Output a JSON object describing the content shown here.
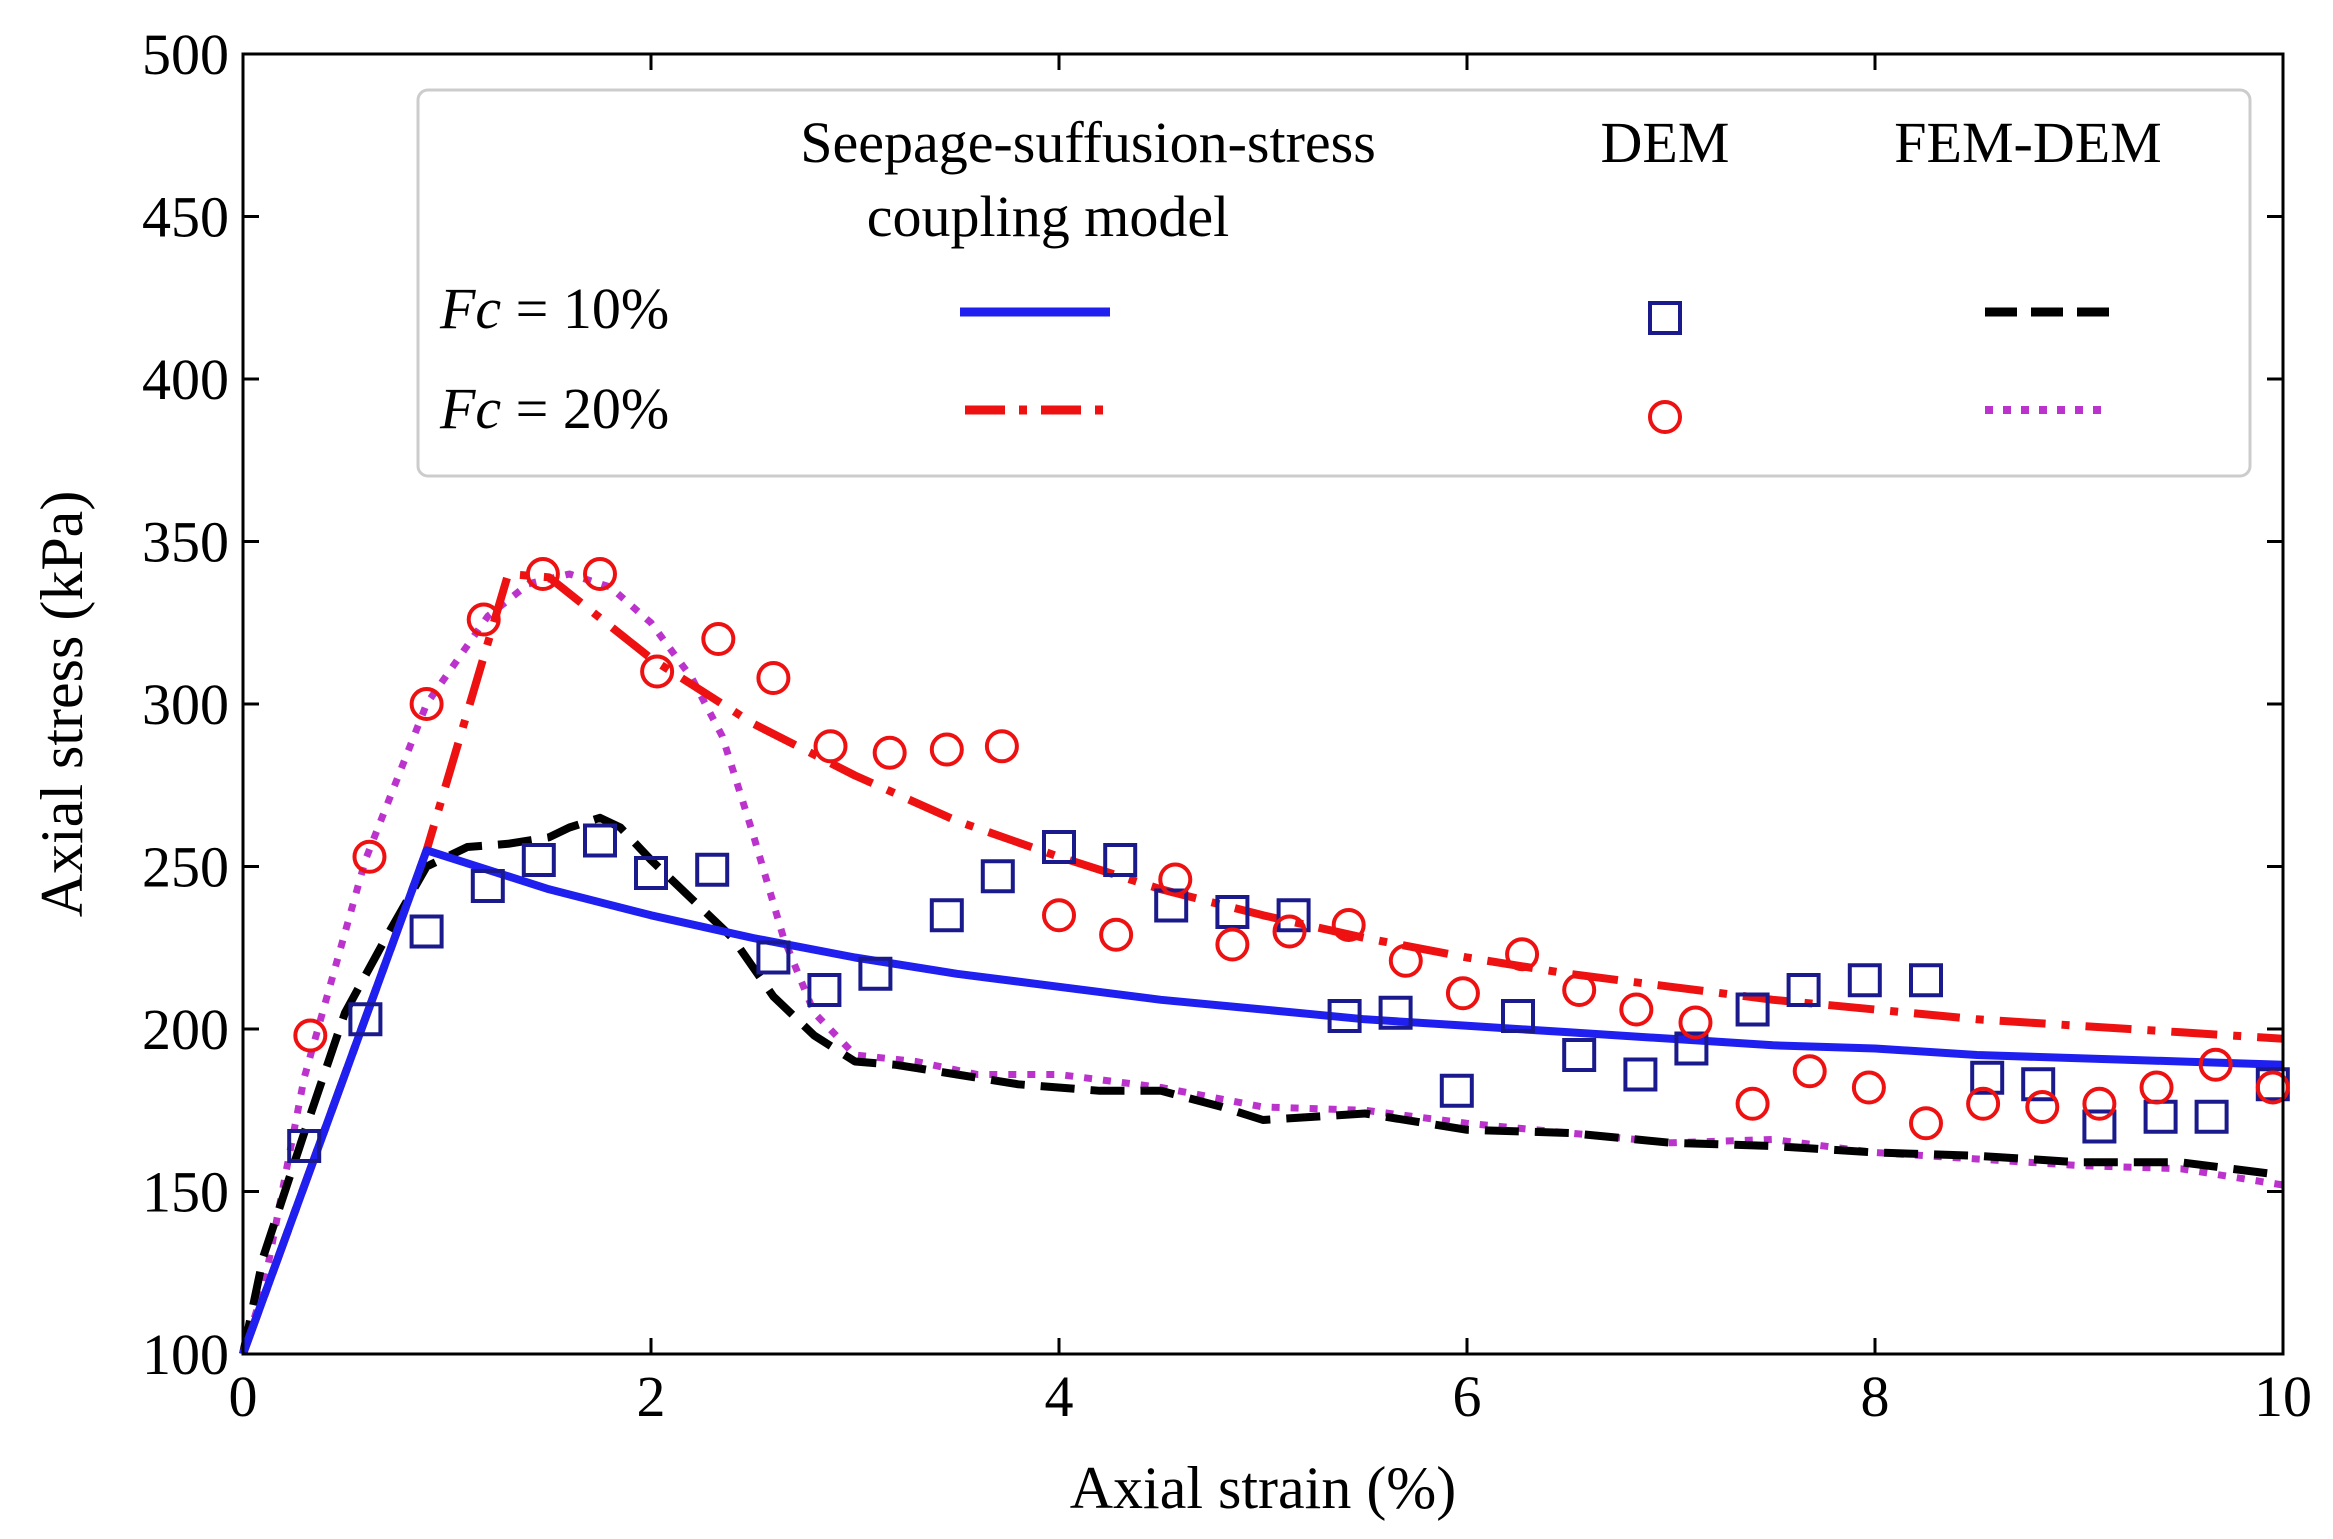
{
  "chart_data": {
    "type": "line",
    "xlabel": "Axial strain (%)",
    "ylabel": "Axial stress (kPa)",
    "xlim": [
      0,
      10
    ],
    "ylim": [
      100,
      500
    ],
    "xticks": [
      0,
      2,
      4,
      6,
      8,
      10
    ],
    "yticks": [
      100,
      150,
      200,
      250,
      300,
      350,
      400,
      450,
      500
    ],
    "legend": {
      "placement": "top-right",
      "col_headers": [
        "Seepage-suffusion-stress coupling model",
        "DEM",
        "FEM-DEM"
      ],
      "col_header_lines": [
        "Seepage-suffusion-stress",
        "coupling model"
      ],
      "rows": [
        {
          "var": "Fc",
          "rest": " = 10%"
        },
        {
          "var": "Fc",
          "rest": " = 20%"
        }
      ]
    },
    "colors": {
      "model_10": "#1f1ff0",
      "model_20": "#ee1111",
      "dem_10": "#1a1a8c",
      "dem_20": "#ee1111",
      "femdem_10": "#000000",
      "femdem_20": "#bb33cc"
    },
    "series": [
      {
        "name": "Seepage-suffusion-stress coupling model, Fc = 10%",
        "style": "solid",
        "x": [
          0,
          0.9,
          1.5,
          2,
          2.5,
          3,
          3.5,
          4,
          4.5,
          5,
          5.5,
          6,
          6.5,
          7,
          7.5,
          8,
          8.5,
          9,
          9.5,
          10
        ],
        "y": [
          100,
          255,
          243,
          235,
          228,
          222,
          217,
          213,
          209,
          206,
          203,
          201,
          199,
          197,
          195,
          194,
          192,
          191,
          190,
          189
        ]
      },
      {
        "name": "Seepage-suffusion-stress coupling model, Fc = 20%",
        "style": "dashdot",
        "x": [
          0,
          0.9,
          1.3,
          1.5,
          2,
          2.5,
          3,
          3.5,
          4,
          4.5,
          5,
          5.5,
          6,
          6.5,
          7,
          7.5,
          8,
          8.5,
          9,
          9.5,
          10
        ],
        "y": [
          100,
          255,
          340,
          339,
          314,
          294,
          278,
          264,
          253,
          243,
          235,
          228,
          222,
          217,
          213,
          209,
          206,
          203,
          201,
          199,
          197
        ]
      },
      {
        "name": "DEM, Fc = 10%",
        "style": "square",
        "x": [
          0.3,
          0.6,
          0.9,
          1.2,
          1.45,
          1.75,
          2.0,
          2.3,
          2.6,
          2.85,
          3.1,
          3.45,
          3.7,
          4.0,
          4.3,
          4.55,
          4.85,
          5.15,
          5.4,
          5.65,
          5.95,
          6.25,
          6.55,
          6.85,
          7.1,
          7.4,
          7.65,
          7.95,
          8.25,
          8.55,
          8.8,
          9.1,
          9.4,
          9.65,
          9.95
        ],
        "y": [
          164,
          203,
          230,
          244,
          252,
          258,
          248,
          249,
          222,
          212,
          217,
          235,
          247,
          256,
          252,
          238,
          236,
          235,
          204,
          205,
          181,
          204,
          192,
          186,
          194,
          206,
          212,
          215,
          215,
          185,
          183,
          170,
          173,
          173,
          183
        ]
      },
      {
        "name": "DEM, Fc = 20%",
        "style": "circle",
        "x": [
          0.33,
          0.62,
          0.9,
          1.18,
          1.47,
          1.75,
          2.03,
          2.33,
          2.6,
          2.88,
          3.17,
          3.45,
          3.72,
          4.0,
          4.28,
          4.57,
          4.85,
          5.13,
          5.42,
          5.7,
          5.98,
          6.27,
          6.55,
          6.83,
          7.12,
          7.4,
          7.68,
          7.97,
          8.25,
          8.53,
          8.82,
          9.1,
          9.38,
          9.67,
          9.95
        ],
        "y": [
          198,
          253,
          300,
          326,
          340,
          340,
          310,
          320,
          308,
          287,
          285,
          286,
          287,
          235,
          229,
          246,
          226,
          230,
          232,
          221,
          211,
          223,
          212,
          206,
          202,
          177,
          187,
          182,
          171,
          177,
          176,
          177,
          182,
          189,
          182
        ]
      },
      {
        "name": "FEM-DEM, Fc = 10%",
        "style": "dashed",
        "x": [
          0,
          0.1,
          0.3,
          0.5,
          0.7,
          0.9,
          1.1,
          1.3,
          1.5,
          1.6,
          1.75,
          1.85,
          2.0,
          2.2,
          2.4,
          2.6,
          2.8,
          3.0,
          3.2,
          3.5,
          3.8,
          4.2,
          4.5,
          4.8,
          5.0,
          5.5,
          6.0,
          6.5,
          7.0,
          7.5,
          8.0,
          8.5,
          9.0,
          9.5,
          10
        ],
        "y": [
          100,
          130,
          168,
          205,
          228,
          250,
          256,
          257,
          259,
          262,
          265,
          262,
          252,
          240,
          228,
          210,
          198,
          190,
          189,
          186,
          183,
          181,
          181,
          176,
          172,
          174,
          169,
          168,
          165,
          164,
          162,
          161,
          159,
          159,
          155
        ]
      },
      {
        "name": "FEM-DEM, Fc = 20%",
        "style": "dotted",
        "x": [
          0,
          0.1,
          0.3,
          0.6,
          0.9,
          1.2,
          1.4,
          1.6,
          1.8,
          2.0,
          2.2,
          2.35,
          2.5,
          2.65,
          2.8,
          3.0,
          3.3,
          3.6,
          4.0,
          4.5,
          5.0,
          5.5,
          6.0,
          6.5,
          7.0,
          7.5,
          8.0,
          8.5,
          9.0,
          9.5,
          10
        ],
        "y": [
          100,
          120,
          185,
          252,
          300,
          327,
          337,
          340,
          336,
          325,
          308,
          290,
          260,
          228,
          205,
          192,
          190,
          186,
          186,
          182,
          176,
          175,
          171,
          168,
          165,
          166,
          162,
          160,
          158,
          157,
          152
        ]
      }
    ]
  }
}
